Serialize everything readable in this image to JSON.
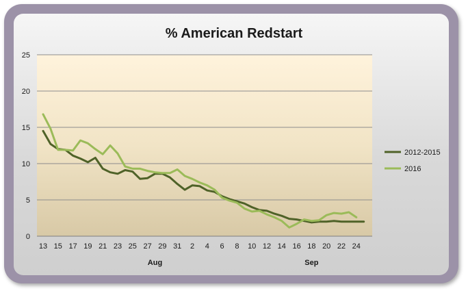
{
  "chart_data": {
    "type": "line",
    "title": "% American Redstart",
    "xlabel": "",
    "ylabel": "",
    "ylim": [
      0,
      25
    ],
    "y_ticks": [
      0,
      5,
      10,
      15,
      20,
      25
    ],
    "x_tick_labels": [
      "13",
      "15",
      "17",
      "19",
      "21",
      "23",
      "25",
      "27",
      "29",
      "31",
      "2",
      "4",
      "6",
      "8",
      "10",
      "12",
      "14",
      "16",
      "18",
      "20",
      "22",
      "24"
    ],
    "month_labels": [
      "Aug",
      "Sep"
    ],
    "grid": true,
    "legend": "right",
    "series": [
      {
        "name": "2012-2015",
        "color": "#4f6228",
        "values": [
          14.5,
          12.7,
          12.0,
          11.9,
          11.1,
          10.7,
          10.2,
          10.8,
          9.3,
          8.8,
          8.6,
          9.1,
          8.9,
          7.9,
          8.0,
          8.6,
          8.6,
          8.1,
          7.2,
          6.4,
          7.0,
          6.9,
          6.3,
          6.1,
          5.5,
          5.1,
          4.8,
          4.5,
          4.0,
          3.6,
          3.5,
          3.1,
          2.8,
          2.4,
          2.3,
          2.1,
          1.9,
          2.0,
          2.0,
          2.1,
          2.0,
          2.0,
          2.0,
          2.0
        ]
      },
      {
        "name": "2016",
        "color": "#9bbb59",
        "values": [
          16.8,
          14.8,
          11.9,
          11.9,
          11.8,
          13.2,
          12.8,
          12.0,
          11.3,
          12.5,
          11.4,
          9.6,
          9.3,
          9.3,
          9.0,
          8.8,
          8.7,
          8.7,
          9.2,
          8.3,
          7.9,
          7.4,
          7.0,
          6.4,
          5.3,
          4.9,
          4.6,
          3.8,
          3.4,
          3.5,
          3.0,
          2.6,
          2.1,
          1.2,
          1.7,
          2.3,
          2.1,
          2.2,
          2.9,
          3.2,
          3.1,
          3.3,
          2.6
        ]
      }
    ]
  }
}
